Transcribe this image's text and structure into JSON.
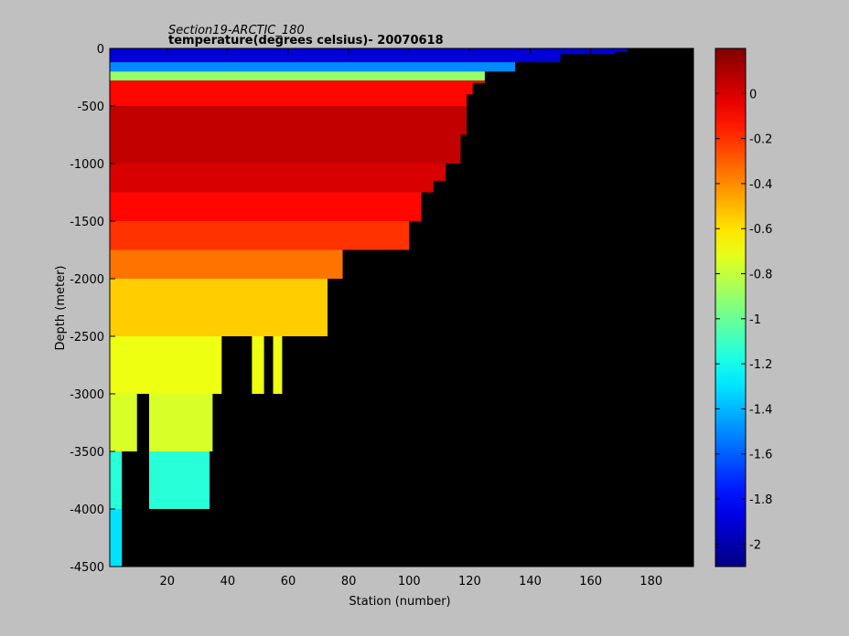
{
  "chart_data": {
    "type": "heatmap",
    "title": "Section19-ARCTIC_180",
    "subtitle": "temperature(degrees  celsius)- 20070618",
    "xlabel": "Station (number)",
    "ylabel": "Depth (meter)",
    "xlim": [
      1,
      194
    ],
    "ylim": [
      -4500,
      0
    ],
    "xticks": [
      20,
      40,
      60,
      80,
      100,
      120,
      140,
      160,
      180
    ],
    "yticks": [
      0,
      -500,
      -1000,
      -1500,
      -2000,
      -2500,
      -3000,
      -3500,
      -4000,
      -4500
    ],
    "colorbar": {
      "clim": [
        -2.1,
        0.2
      ],
      "ticks": [
        0,
        -0.2,
        -0.4,
        -0.6,
        -0.8,
        -1,
        -1.2,
        -1.4,
        -1.6,
        -1.8,
        -2
      ],
      "colormap": "jet"
    },
    "no_data_color": "#000000",
    "depth_layers": [
      {
        "top": 0,
        "bottom": -120,
        "temperature": -1.9
      },
      {
        "top": -120,
        "bottom": -200,
        "temperature": -1.5
      },
      {
        "top": -200,
        "bottom": -280,
        "temperature": -0.9
      },
      {
        "top": -280,
        "bottom": -500,
        "temperature": -0.1
      },
      {
        "top": -500,
        "bottom": -1000,
        "temperature": 0.05
      },
      {
        "top": -1000,
        "bottom": -1250,
        "temperature": 0.0
      },
      {
        "top": -1250,
        "bottom": -1500,
        "temperature": -0.1
      },
      {
        "top": -1500,
        "bottom": -1750,
        "temperature": -0.2
      },
      {
        "top": -1750,
        "bottom": -2000,
        "temperature": -0.35
      },
      {
        "top": -2000,
        "bottom": -2500,
        "temperature": -0.55
      },
      {
        "top": -2500,
        "bottom": -3000,
        "temperature": -0.7
      },
      {
        "top": -3000,
        "bottom": -3500,
        "temperature": -0.75
      },
      {
        "top": -3500,
        "bottom": -4000,
        "temperature": -1.15
      },
      {
        "top": -4000,
        "bottom": -4500,
        "temperature": -1.3
      }
    ],
    "bottom_depth_profile": [
      {
        "station": 1,
        "depth": -4500
      },
      {
        "station": 5,
        "depth": -3500
      },
      {
        "station": 10,
        "depth": -3000
      },
      {
        "station": 13,
        "depth": -3000
      },
      {
        "station": 14,
        "depth": -4000
      },
      {
        "station": 34,
        "depth": -3500
      },
      {
        "station": 35,
        "depth": -3000
      },
      {
        "station": 38,
        "depth": -2500
      },
      {
        "station": 48,
        "depth": -3000
      },
      {
        "station": 52,
        "depth": -2500
      },
      {
        "station": 55,
        "depth": -3000
      },
      {
        "station": 58,
        "depth": -2500
      },
      {
        "station": 73,
        "depth": -2000
      },
      {
        "station": 78,
        "depth": -1750
      },
      {
        "station": 100,
        "depth": -1500
      },
      {
        "station": 104,
        "depth": -1250
      },
      {
        "station": 108,
        "depth": -1150
      },
      {
        "station": 112,
        "depth": -1000
      },
      {
        "station": 117,
        "depth": -750
      },
      {
        "station": 119,
        "depth": -400
      },
      {
        "station": 121,
        "depth": -300
      },
      {
        "station": 125,
        "depth": -200
      },
      {
        "station": 135,
        "depth": -120
      },
      {
        "station": 150,
        "depth": -50
      },
      {
        "station": 168,
        "depth": -30
      },
      {
        "station": 172,
        "depth": 0
      },
      {
        "station": 194,
        "depth": 0
      }
    ]
  }
}
